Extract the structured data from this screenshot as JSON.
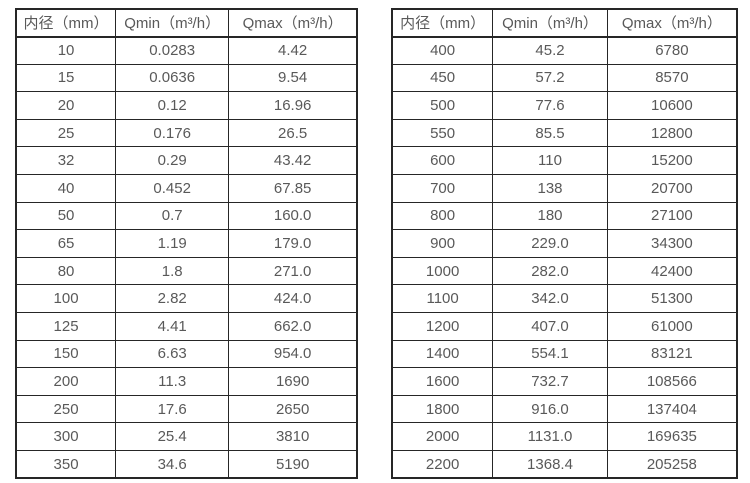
{
  "tables": [
    {
      "name": "small-diameters",
      "headers": [
        "内径（mm）",
        "Qmin（m³/h）",
        "Qmax（m³/h）"
      ],
      "rows": [
        [
          "10",
          "0.0283",
          "4.42"
        ],
        [
          "15",
          "0.0636",
          "9.54"
        ],
        [
          "20",
          "0.12",
          "16.96"
        ],
        [
          "25",
          "0.176",
          "26.5"
        ],
        [
          "32",
          "0.29",
          "43.42"
        ],
        [
          "40",
          "0.452",
          "67.85"
        ],
        [
          "50",
          "0.7",
          "160.0"
        ],
        [
          "65",
          "1.19",
          "179.0"
        ],
        [
          "80",
          "1.8",
          "271.0"
        ],
        [
          "100",
          "2.82",
          "424.0"
        ],
        [
          "125",
          "4.41",
          "662.0"
        ],
        [
          "150",
          "6.63",
          "954.0"
        ],
        [
          "200",
          "11.3",
          "1690"
        ],
        [
          "250",
          "17.6",
          "2650"
        ],
        [
          "300",
          "25.4",
          "3810"
        ],
        [
          "350",
          "34.6",
          "5190"
        ]
      ]
    },
    {
      "name": "large-diameters",
      "headers": [
        "内径（mm）",
        "Qmin（m³/h）",
        "Qmax（m³/h）"
      ],
      "rows": [
        [
          "400",
          "45.2",
          "6780"
        ],
        [
          "450",
          "57.2",
          "8570"
        ],
        [
          "500",
          "77.6",
          "10600"
        ],
        [
          "550",
          "85.5",
          "12800"
        ],
        [
          "600",
          "110",
          "15200"
        ],
        [
          "700",
          "138",
          "20700"
        ],
        [
          "800",
          "180",
          "27100"
        ],
        [
          "900",
          "229.0",
          "34300"
        ],
        [
          "1000",
          "282.0",
          "42400"
        ],
        [
          "1100",
          "342.0",
          "51300"
        ],
        [
          "1200",
          "407.0",
          "61000"
        ],
        [
          "1400",
          "554.1",
          "83121"
        ],
        [
          "1600",
          "732.7",
          "108566"
        ],
        [
          "1800",
          "916.0",
          "137404"
        ],
        [
          "2000",
          "1131.0",
          "169635"
        ],
        [
          "2200",
          "1368.4",
          "205258"
        ]
      ]
    }
  ],
  "colors": {
    "border": "#262626",
    "text": "#595959",
    "background": "#ffffff"
  }
}
